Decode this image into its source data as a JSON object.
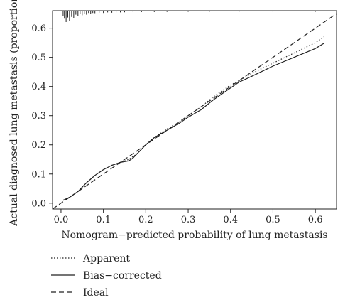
{
  "chart_data": {
    "type": "line",
    "title": "",
    "xlabel": "Nomogram−predicted probability of lung metastasis",
    "ylabel": "Actual diagnosed lung metastasis (proportion)",
    "xlim": [
      -0.02,
      0.65
    ],
    "ylim": [
      -0.02,
      0.66
    ],
    "x_ticks": [
      0.0,
      0.1,
      0.2,
      0.3,
      0.4,
      0.5,
      0.6
    ],
    "x_tick_labels": [
      "0.0",
      "0.1",
      "0.2",
      "0.3",
      "0.4",
      "0.5",
      "0.6"
    ],
    "y_ticks": [
      0.0,
      0.1,
      0.2,
      0.3,
      0.4,
      0.5,
      0.6
    ],
    "y_tick_labels": [
      "0.0",
      "0.1",
      "0.2",
      "0.3",
      "0.4",
      "0.5",
      "0.6"
    ],
    "grid": false,
    "legend_position": "bottom-left",
    "series": [
      {
        "name": "Apparent",
        "style": "dotted",
        "color": "#222222",
        "x": [
          0.005,
          0.02,
          0.04,
          0.06,
          0.08,
          0.1,
          0.12,
          0.14,
          0.16,
          0.18,
          0.2,
          0.22,
          0.25,
          0.28,
          0.3,
          0.33,
          0.36,
          0.4,
          0.42,
          0.45,
          0.5,
          0.55,
          0.6,
          0.62
        ],
        "y": [
          0.01,
          0.02,
          0.04,
          0.07,
          0.095,
          0.115,
          0.13,
          0.14,
          0.15,
          0.17,
          0.2,
          0.225,
          0.255,
          0.28,
          0.3,
          0.33,
          0.365,
          0.405,
          0.42,
          0.445,
          0.48,
          0.515,
          0.55,
          0.57
        ]
      },
      {
        "name": "Bias−corrected",
        "style": "solid",
        "color": "#222222",
        "x": [
          0.005,
          0.02,
          0.04,
          0.06,
          0.08,
          0.1,
          0.12,
          0.14,
          0.16,
          0.17,
          0.18,
          0.2,
          0.22,
          0.25,
          0.28,
          0.3,
          0.33,
          0.36,
          0.4,
          0.42,
          0.45,
          0.5,
          0.55,
          0.6,
          0.62
        ],
        "y": [
          0.01,
          0.02,
          0.04,
          0.07,
          0.095,
          0.115,
          0.13,
          0.14,
          0.145,
          0.155,
          0.17,
          0.2,
          0.225,
          0.25,
          0.275,
          0.295,
          0.32,
          0.355,
          0.395,
          0.415,
          0.435,
          0.47,
          0.5,
          0.53,
          0.548
        ]
      },
      {
        "name": "Ideal",
        "style": "dashed",
        "color": "#222222",
        "x": [
          -0.02,
          0.65
        ],
        "y": [
          -0.02,
          0.65
        ]
      }
    ],
    "rug": {
      "position": "top",
      "x": [
        0.005,
        0.008,
        0.012,
        0.016,
        0.02,
        0.025,
        0.03,
        0.035,
        0.04,
        0.045,
        0.05,
        0.055,
        0.06,
        0.065,
        0.07,
        0.075,
        0.08,
        0.09,
        0.1,
        0.11,
        0.12,
        0.13,
        0.14,
        0.15,
        0.17,
        0.19,
        0.22,
        0.25,
        0.3,
        0.35,
        0.42,
        0.5,
        0.6
      ],
      "heights": [
        0.5,
        0.7,
        1.0,
        0.6,
        0.9,
        0.55,
        0.65,
        0.35,
        0.45,
        0.3,
        0.4,
        0.25,
        0.35,
        0.2,
        0.25,
        0.2,
        0.22,
        0.18,
        0.2,
        0.15,
        0.18,
        0.15,
        0.15,
        0.14,
        0.13,
        0.12,
        0.12,
        0.11,
        0.1,
        0.1,
        0.1,
        0.1,
        0.1
      ]
    }
  }
}
